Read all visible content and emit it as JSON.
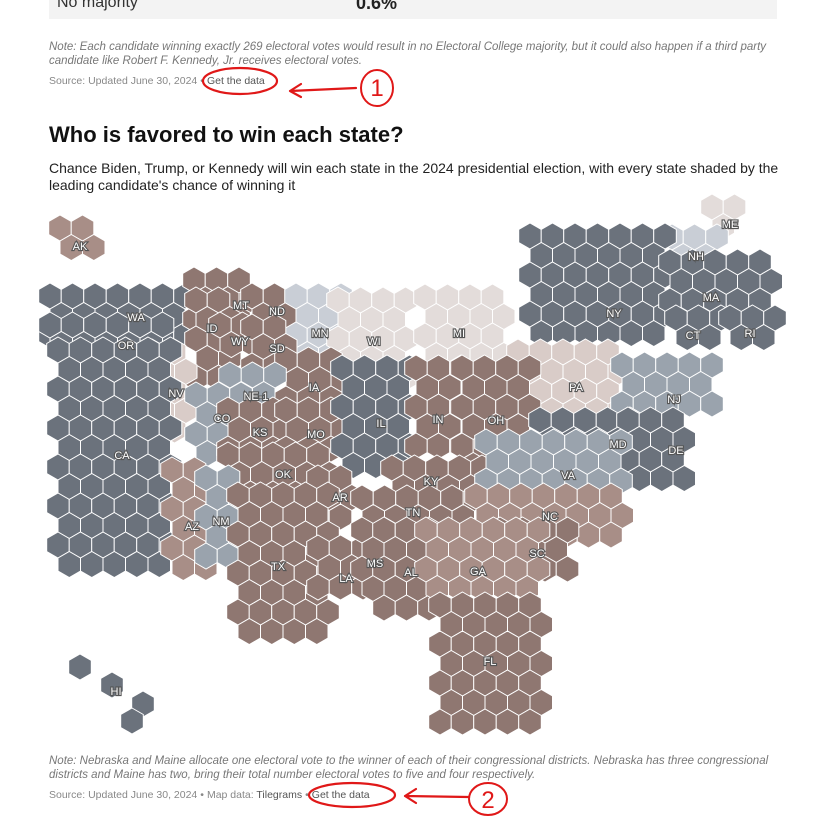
{
  "top_row": {
    "label": "No majority",
    "value": "0.6%"
  },
  "note1": "Note: Each candidate winning exactly 269 electoral votes would result in no Electoral College majority, but it could also happen if a third party candidate like Robert F. Kennedy, Jr. receives electoral votes.",
  "source1": {
    "text": "Source: Updated June 30, 2024",
    "separator": "•",
    "link": "Get the data"
  },
  "section": {
    "title": "Who is favored to win each state?",
    "subtitle": "Chance Biden, Trump, or Kennedy will win each state in the 2024 presidential election, with every state shaded by the leading candidate's chance of winning it"
  },
  "state_labels": [
    "AK",
    "ME",
    "NH",
    "WA",
    "MT",
    "ND",
    "MN",
    "WI",
    "MI",
    "NY",
    "MA",
    "ID",
    "OR",
    "WY",
    "SD",
    "CT",
    "RI",
    "IA",
    "NV",
    "NE-1",
    "PA",
    "NJ",
    "CO",
    "KS",
    "MO",
    "IL",
    "IN",
    "OH",
    "CA",
    "MD",
    "DE",
    "OK",
    "KY",
    "VA",
    "AR",
    "TN",
    "AZ",
    "NM",
    "NC",
    "SC",
    "TX",
    "LA",
    "MS",
    "AL",
    "GA",
    "FL",
    "HI"
  ],
  "colors": {
    "dem_strong": "#6b727c",
    "dem_lean": "#9aa3ad",
    "dem_tilt": "#c9ced6",
    "rep_strong": "#8f7771",
    "rep_lean": "#a88e87",
    "rep_tilt": "#d9ccc8",
    "toss": "#e3dcda"
  },
  "note2": "Note: Nebraska and Maine allocate one electoral vote to the winner of each of their congressional districts. Nebraska has three congressional districts and Maine has two, bring their total number electoral votes to five and four respectively.",
  "source2": {
    "text": "Source: Updated June 30, 2024",
    "separator": "•",
    "mapdata_prefix": "Map data:",
    "mapdata_link": "Tilegrams",
    "link": "Get the data"
  },
  "annotations": [
    "1",
    "2"
  ]
}
